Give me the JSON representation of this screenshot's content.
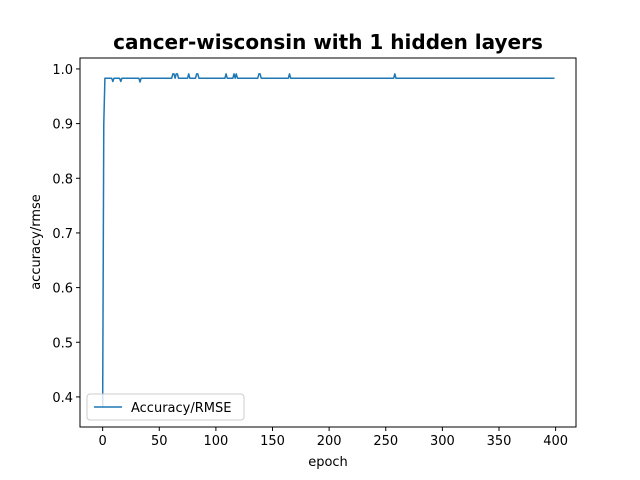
{
  "chart_data": {
    "type": "line",
    "title": "cancer-wisconsin with 1 hidden layers",
    "xlabel": "epoch",
    "ylabel": "accuracy/rmse",
    "xlim": [
      -20,
      418
    ],
    "ylim": [
      0.345,
      1.02
    ],
    "xticks": [
      0,
      50,
      100,
      150,
      200,
      250,
      300,
      350,
      400
    ],
    "yticks": [
      0.4,
      0.5,
      0.6,
      0.7,
      0.8,
      0.9,
      1.0
    ],
    "ytick_labels": [
      "0.4",
      "0.5",
      "0.6",
      "0.7",
      "0.8",
      "0.9",
      "1.0"
    ],
    "legend_position": "lower-left",
    "grid": false,
    "series": [
      {
        "name": "Accuracy/RMSE",
        "color": "#1f77b4",
        "points": [
          [
            0,
            0.38
          ],
          [
            1,
            0.9
          ],
          [
            2,
            0.983
          ],
          [
            8,
            0.983
          ],
          [
            9,
            0.977
          ],
          [
            10,
            0.983
          ],
          [
            15,
            0.983
          ],
          [
            16,
            0.977
          ],
          [
            17,
            0.983
          ],
          [
            32,
            0.983
          ],
          [
            33,
            0.976
          ],
          [
            34,
            0.983
          ],
          [
            61,
            0.983
          ],
          [
            62,
            0.991
          ],
          [
            63,
            0.991
          ],
          [
            64,
            0.983
          ],
          [
            65,
            0.991
          ],
          [
            66,
            0.991
          ],
          [
            67,
            0.983
          ],
          [
            75,
            0.983
          ],
          [
            76,
            0.991
          ],
          [
            77,
            0.983
          ],
          [
            82,
            0.983
          ],
          [
            83,
            0.991
          ],
          [
            84,
            0.991
          ],
          [
            85,
            0.983
          ],
          [
            108,
            0.983
          ],
          [
            109,
            0.991
          ],
          [
            110,
            0.983
          ],
          [
            115,
            0.983
          ],
          [
            116,
            0.991
          ],
          [
            117,
            0.983
          ],
          [
            118,
            0.991
          ],
          [
            119,
            0.983
          ],
          [
            137,
            0.983
          ],
          [
            138,
            0.991
          ],
          [
            139,
            0.991
          ],
          [
            140,
            0.983
          ],
          [
            164,
            0.983
          ],
          [
            165,
            0.991
          ],
          [
            166,
            0.983
          ],
          [
            257,
            0.983
          ],
          [
            258,
            0.991
          ],
          [
            259,
            0.983
          ],
          [
            399,
            0.983
          ]
        ]
      }
    ]
  }
}
